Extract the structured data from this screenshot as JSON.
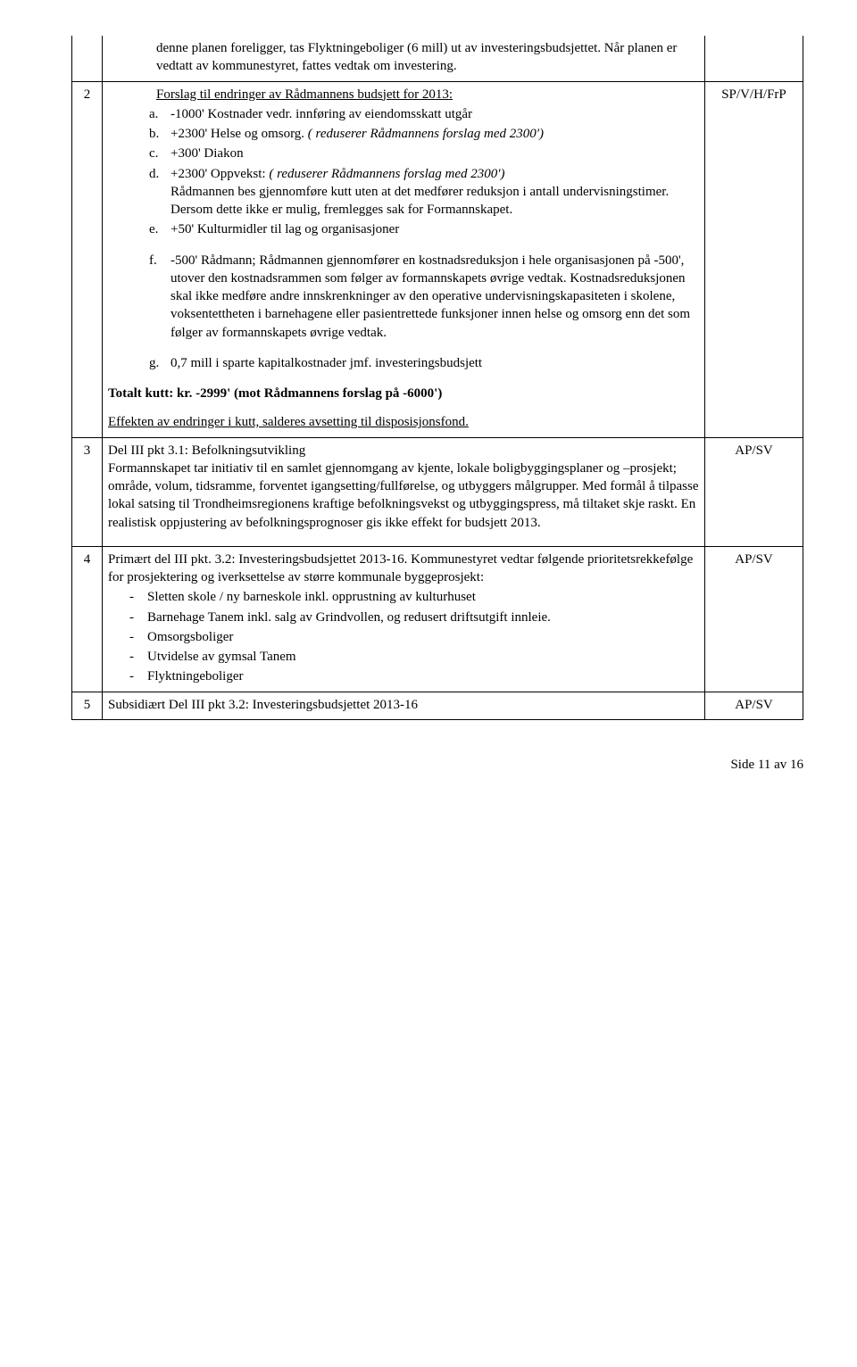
{
  "rows": [
    {
      "num": "",
      "party": "",
      "intro": "denne planen foreligger, tas Flyktningeboliger (6 mill) ut av investeringsbudsjettet. Når planen er vedtatt av kommunestyret, fattes vedtak om investering."
    },
    {
      "num": "2",
      "party": "SP/V/H/FrP",
      "heading_underline": "Forslag til endringer av Rådmannens budsjett for 2013:",
      "items_a": "-1000' Kostnader vedr. innføring av eiendomsskatt utgår",
      "items_b_pre": "+2300' Helse og omsorg. ",
      "items_b_it": "( reduserer Rådmannens forslag med 2300')",
      "items_c": "+300' Diakon",
      "items_d_pre": "+2300' Oppvekst:        ",
      "items_d_it": "( reduserer Rådmannens forslag med 2300')",
      "items_d_body": "Rådmannen bes gjennomføre kutt uten at det medfører reduksjon i antall undervisningstimer. Dersom dette ikke er mulig, fremlegges sak for Formannskapet.",
      "items_e": "+50' Kulturmidler til lag og organisasjoner",
      "items_f": "-500' Rådmann; Rådmannen gjennomfører en kostnadsreduksjon i hele organisasjonen på -500', utover den kostnadsrammen som følger av formannskapets øvrige vedtak. Kostnadsreduksjonen skal ikke medføre andre innskrenkninger av den operative undervisningskapasiteten i skolene, voksentettheten i barnehagene eller pasientrettede funksjoner innen helse og omsorg enn det som følger av formannskapets øvrige vedtak.",
      "items_g": "0,7 mill i sparte kapitalkostnader jmf. investeringsbudsjett",
      "total_bold": "Totalt kutt: kr. -2999' (mot Rådmannens forslag på -6000')",
      "effect_underline": "Effekten av endringer i kutt, salderes avsetting til disposisjonsfond."
    },
    {
      "num": "3",
      "party": "AP/SV",
      "para": "Del III pkt 3.1: Befolkningsutvikling\nFormannskapet tar initiativ til en samlet gjennomgang av kjente, lokale boligbyggingsplaner og –prosjekt; område, volum, tidsramme, forventet igangsetting/fullførelse, og utbyggers målgrupper. Med formål å tilpasse lokal satsing til Trondheimsregionens kraftige befolkningsvekst og utbyggingspress, må tiltaket skje raskt. En realistisk oppjustering av befolkningsprognoser gis ikke effekt for budsjett 2013."
    },
    {
      "num": "4",
      "party": "AP/SV",
      "para4_intro": "Primært del III pkt. 3.2: Investeringsbudsjettet 2013-16. Kommunestyret vedtar følgende prioritetsrekkefølge for prosjektering og iverksettelse av større kommunale byggeprosjekt:",
      "d1": "Sletten skole / ny barneskole inkl. opprustning av kulturhuset",
      "d2": "Barnehage Tanem inkl. salg av Grindvollen, og redusert driftsutgift innleie.",
      "d3": "Omsorgsboliger",
      "d4": "Utvidelse av gymsal Tanem",
      "d5": "Flyktningeboliger"
    },
    {
      "num": "5",
      "party": "AP/SV",
      "para": "Subsidiært Del III pkt 3.2: Investeringsbudsjettet 2013-16"
    }
  ],
  "footer": "Side 11 av 16"
}
